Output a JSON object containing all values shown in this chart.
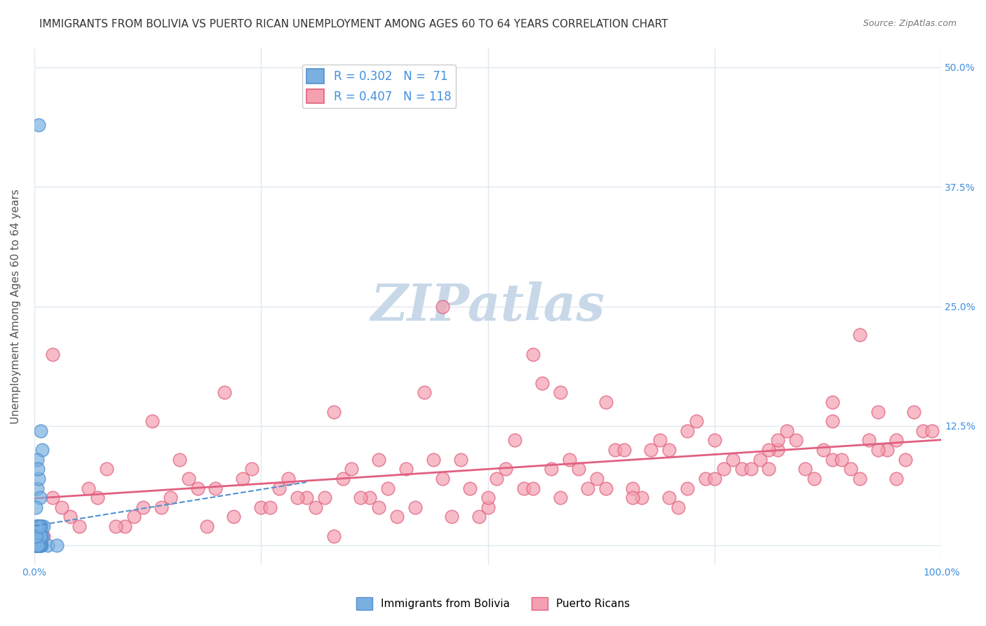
{
  "title": "IMMIGRANTS FROM BOLIVIA VS PUERTO RICAN UNEMPLOYMENT AMONG AGES 60 TO 64 YEARS CORRELATION CHART",
  "source": "Source: ZipAtlas.com",
  "ylabel": "Unemployment Among Ages 60 to 64 years",
  "xlabel": "",
  "xlim": [
    0,
    1.0
  ],
  "ylim": [
    -0.02,
    0.52
  ],
  "xticks": [
    0.0,
    0.25,
    0.5,
    0.75,
    1.0
  ],
  "xticklabels": [
    "0.0%",
    "",
    "",
    "",
    "100.0%"
  ],
  "yticks": [
    0.0,
    0.125,
    0.25,
    0.375,
    0.5
  ],
  "yticklabels": [
    "",
    "12.5%",
    "25.0%",
    "37.5%",
    "50.0%"
  ],
  "legend_r1": "R = 0.302",
  "legend_n1": "N =  71",
  "legend_r2": "R = 0.407",
  "legend_n2": "N = 118",
  "blue_color": "#7ab0e0",
  "pink_color": "#f4a0b0",
  "blue_line_color": "#5090d0",
  "pink_line_color": "#e06080",
  "watermark": "ZIPatlas",
  "watermark_color": "#c8d8e8",
  "background_color": "#ffffff",
  "grid_color": "#e0e8f0",
  "right_label_color": "#4090e0",
  "title_fontsize": 11,
  "axis_label_fontsize": 11,
  "tick_fontsize": 10,
  "bolivia_scatter": {
    "x": [
      0.005,
      0.008,
      0.003,
      0.01,
      0.006,
      0.004,
      0.002,
      0.015,
      0.007,
      0.009,
      0.003,
      0.005,
      0.004,
      0.006,
      0.008,
      0.002,
      0.003,
      0.005,
      0.007,
      0.004,
      0.006,
      0.002,
      0.004,
      0.003,
      0.005,
      0.004,
      0.006,
      0.003,
      0.002,
      0.005,
      0.007,
      0.003,
      0.004,
      0.002,
      0.006,
      0.005,
      0.004,
      0.003,
      0.002,
      0.005,
      0.006,
      0.003,
      0.004,
      0.002,
      0.006,
      0.005,
      0.004,
      0.007,
      0.003,
      0.008,
      0.002,
      0.005,
      0.004,
      0.006,
      0.003,
      0.009,
      0.002,
      0.004,
      0.006,
      0.003,
      0.025,
      0.004,
      0.003,
      0.006,
      0.002,
      0.005,
      0.007,
      0.003,
      0.004,
      0.002,
      0.006
    ],
    "y": [
      0.44,
      0.02,
      0.01,
      0.02,
      0.0,
      0.0,
      0.0,
      0.0,
      0.12,
      0.1,
      0.06,
      0.07,
      0.01,
      0.02,
      0.0,
      0.0,
      0.01,
      0.02,
      0.0,
      0.01,
      0.05,
      0.04,
      0.02,
      0.01,
      0.0,
      0.02,
      0.01,
      0.0,
      0.02,
      0.0,
      0.01,
      0.09,
      0.08,
      0.0,
      0.01,
      0.0,
      0.02,
      0.0,
      0.01,
      0.0,
      0.0,
      0.0,
      0.01,
      0.0,
      0.02,
      0.0,
      0.01,
      0.0,
      0.0,
      0.01,
      0.0,
      0.02,
      0.01,
      0.0,
      0.0,
      0.01,
      0.0,
      0.02,
      0.0,
      0.01,
      0.0,
      0.0,
      0.02,
      0.01,
      0.0,
      0.0,
      0.01,
      0.02,
      0.0,
      0.01,
      0.02
    ]
  },
  "puertorico_scatter": {
    "x": [
      0.02,
      0.05,
      0.08,
      0.12,
      0.18,
      0.22,
      0.28,
      0.32,
      0.38,
      0.42,
      0.48,
      0.52,
      0.58,
      0.62,
      0.68,
      0.72,
      0.78,
      0.82,
      0.88,
      0.92,
      0.98,
      0.04,
      0.07,
      0.1,
      0.14,
      0.2,
      0.24,
      0.3,
      0.34,
      0.4,
      0.44,
      0.5,
      0.54,
      0.6,
      0.64,
      0.7,
      0.74,
      0.8,
      0.84,
      0.9,
      0.94,
      0.03,
      0.06,
      0.09,
      0.15,
      0.17,
      0.25,
      0.27,
      0.35,
      0.37,
      0.45,
      0.47,
      0.55,
      0.57,
      0.65,
      0.67,
      0.75,
      0.77,
      0.85,
      0.87,
      0.95,
      0.01,
      0.11,
      0.16,
      0.19,
      0.23,
      0.29,
      0.31,
      0.39,
      0.41,
      0.49,
      0.51,
      0.59,
      0.61,
      0.69,
      0.71,
      0.79,
      0.81,
      0.89,
      0.91,
      0.99,
      0.13,
      0.21,
      0.26,
      0.33,
      0.36,
      0.43,
      0.46,
      0.53,
      0.56,
      0.63,
      0.66,
      0.73,
      0.76,
      0.83,
      0.86,
      0.93,
      0.96,
      0.02,
      0.33,
      0.55,
      0.66,
      0.72,
      0.81,
      0.88,
      0.93,
      0.97,
      0.45,
      0.58,
      0.7,
      0.82,
      0.91,
      0.38,
      0.63,
      0.75,
      0.88,
      0.95,
      0.5
    ],
    "y": [
      0.05,
      0.02,
      0.08,
      0.04,
      0.06,
      0.03,
      0.07,
      0.05,
      0.09,
      0.04,
      0.06,
      0.08,
      0.05,
      0.07,
      0.1,
      0.06,
      0.08,
      0.1,
      0.09,
      0.11,
      0.12,
      0.03,
      0.05,
      0.02,
      0.04,
      0.06,
      0.08,
      0.05,
      0.07,
      0.03,
      0.09,
      0.04,
      0.06,
      0.08,
      0.1,
      0.05,
      0.07,
      0.09,
      0.11,
      0.08,
      0.1,
      0.04,
      0.06,
      0.02,
      0.05,
      0.07,
      0.04,
      0.06,
      0.08,
      0.05,
      0.07,
      0.09,
      0.06,
      0.08,
      0.1,
      0.05,
      0.07,
      0.09,
      0.08,
      0.1,
      0.11,
      0.01,
      0.03,
      0.09,
      0.02,
      0.07,
      0.05,
      0.04,
      0.06,
      0.08,
      0.03,
      0.07,
      0.09,
      0.06,
      0.11,
      0.04,
      0.08,
      0.1,
      0.09,
      0.07,
      0.12,
      0.13,
      0.16,
      0.04,
      0.14,
      0.05,
      0.16,
      0.03,
      0.11,
      0.17,
      0.15,
      0.06,
      0.13,
      0.08,
      0.12,
      0.07,
      0.14,
      0.09,
      0.2,
      0.01,
      0.2,
      0.05,
      0.12,
      0.08,
      0.15,
      0.1,
      0.14,
      0.25,
      0.16,
      0.1,
      0.11,
      0.22,
      0.04,
      0.06,
      0.11,
      0.13,
      0.07,
      0.05
    ]
  }
}
